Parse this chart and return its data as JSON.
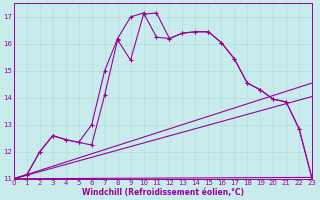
{
  "xlabel": "Windchill (Refroidissement éolien,°C)",
  "xlim": [
    0,
    23
  ],
  "ylim": [
    11,
    17.5
  ],
  "yticks": [
    11,
    12,
    13,
    14,
    15,
    16,
    17
  ],
  "xticks": [
    0,
    1,
    2,
    3,
    4,
    5,
    6,
    7,
    8,
    9,
    10,
    11,
    12,
    13,
    14,
    15,
    16,
    17,
    18,
    19,
    20,
    21,
    22,
    23
  ],
  "bg_color": "#c8ecec",
  "line_color": "#990099",
  "grid_color": "#b8dede",
  "curve1_x": [
    0,
    1,
    2,
    3,
    4,
    5,
    6,
    7,
    8,
    9,
    10,
    11,
    12,
    13,
    14,
    15,
    16,
    17,
    18,
    19,
    20,
    21,
    22,
    23
  ],
  "curve1_y": [
    11.0,
    11.15,
    12.0,
    12.6,
    12.45,
    12.35,
    13.0,
    15.0,
    16.2,
    17.0,
    17.15,
    16.25,
    16.2,
    16.4,
    16.45,
    16.45,
    16.05,
    15.45,
    14.55,
    14.3,
    13.95,
    13.85,
    12.85,
    11.0
  ],
  "curve2_x": [
    0,
    1,
    2,
    3,
    4,
    5,
    6,
    7,
    8,
    9,
    10,
    11,
    12,
    13,
    14,
    15,
    16,
    17,
    18,
    19,
    20,
    21,
    22,
    23
  ],
  "curve2_y": [
    11.0,
    11.15,
    12.0,
    12.6,
    12.45,
    12.35,
    12.25,
    14.1,
    16.15,
    15.4,
    17.1,
    17.15,
    16.2,
    16.4,
    16.45,
    16.45,
    16.05,
    15.45,
    14.55,
    14.3,
    13.95,
    13.85,
    12.85,
    11.0
  ],
  "line3_x": [
    0,
    23
  ],
  "line3_y": [
    11.0,
    14.55
  ],
  "line4_x": [
    0,
    23
  ],
  "line4_y": [
    11.0,
    14.05
  ],
  "line5_x": [
    0,
    23
  ],
  "line5_y": [
    11.0,
    11.05
  ]
}
